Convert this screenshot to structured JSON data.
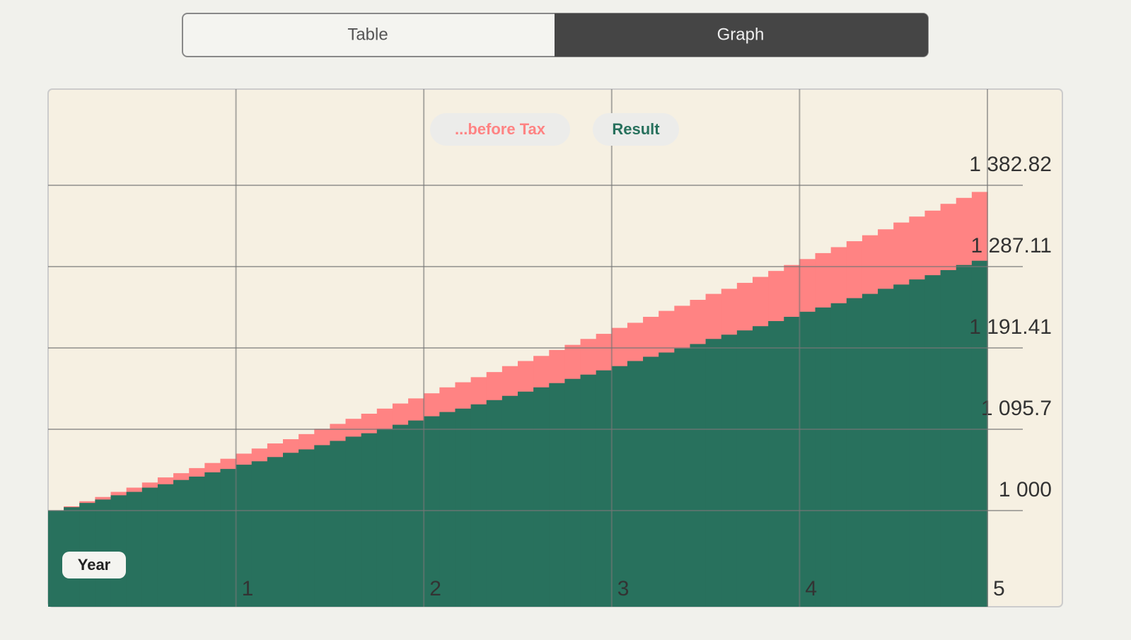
{
  "tabs": [
    "Table",
    "Graph"
  ],
  "chart_data": {
    "type": "step-area",
    "x_label": "Year",
    "xlim": [
      0,
      5
    ],
    "xticks": [
      1,
      2,
      3,
      4,
      5
    ],
    "ylim": [
      886.8,
      1496
    ],
    "yticks": [
      {
        "value": 1000,
        "label": "1 000"
      },
      {
        "value": 1095.7,
        "label": "1 095.7"
      },
      {
        "value": 1191.41,
        "label": "1 191.41"
      },
      {
        "value": 1287.11,
        "label": "1 287.11"
      },
      {
        "value": 1382.82,
        "label": "1 382.82"
      }
    ],
    "grid": true,
    "series": [
      {
        "name": "...before Tax",
        "color": "#ff8383",
        "values": [
          1000,
          1005,
          1011,
          1016,
          1022,
          1027,
          1033,
          1039,
          1044,
          1050,
          1056,
          1061,
          1067,
          1073,
          1079,
          1084,
          1090,
          1096,
          1102,
          1108,
          1114,
          1120,
          1126,
          1132,
          1138,
          1145,
          1151,
          1157,
          1163,
          1170,
          1176,
          1182,
          1189,
          1195,
          1202,
          1208,
          1215,
          1221,
          1228,
          1235,
          1241,
          1248,
          1255,
          1261,
          1268,
          1275,
          1282,
          1289,
          1296,
          1303,
          1310,
          1317,
          1324,
          1331,
          1339,
          1346,
          1353,
          1361,
          1368,
          1375
        ]
      },
      {
        "name": "Result",
        "color": "#28715d",
        "values": [
          1000,
          1004,
          1009,
          1013,
          1018,
          1022,
          1027,
          1031,
          1036,
          1040,
          1045,
          1049,
          1054,
          1058,
          1063,
          1068,
          1072,
          1077,
          1082,
          1087,
          1091,
          1096,
          1101,
          1106,
          1111,
          1116,
          1120,
          1125,
          1130,
          1135,
          1140,
          1145,
          1150,
          1155,
          1160,
          1165,
          1170,
          1176,
          1181,
          1186,
          1191,
          1196,
          1202,
          1207,
          1212,
          1217,
          1223,
          1228,
          1234,
          1239,
          1244,
          1250,
          1255,
          1261,
          1266,
          1272,
          1277,
          1283,
          1289,
          1294
        ]
      }
    ]
  }
}
